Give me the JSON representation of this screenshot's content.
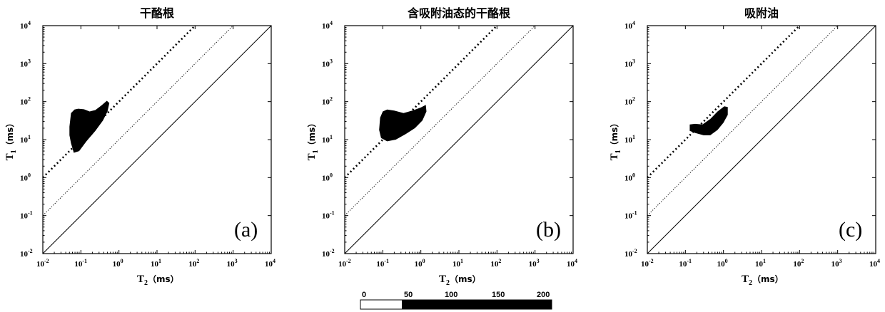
{
  "figure": {
    "tick_base": "10",
    "tick_exponents": [
      "-2",
      "-1",
      "0",
      "1",
      "2",
      "3",
      "4"
    ],
    "xlabel_main": "T",
    "xlabel_sub": "2",
    "ylabel_main": "T",
    "ylabel_sub": "1",
    "unit": "（ms）"
  },
  "colorbar": {
    "ticks": [
      "0",
      "50",
      "100",
      "150",
      "200"
    ],
    "range": [
      0,
      200
    ]
  },
  "chart_data": [
    {
      "type": "scatter",
      "title": "干酪根",
      "panel_label": "(a)",
      "xscale": "log",
      "yscale": "log",
      "xlim": [
        0.01,
        10000
      ],
      "ylim": [
        0.01,
        10000
      ],
      "xlabel": "T2（ms）",
      "ylabel": "T1（ms）",
      "reference_lines": [
        {
          "style": "solid",
          "ratio": 1
        },
        {
          "style": "dotted-fine",
          "ratio": 10
        },
        {
          "style": "dotted-bold",
          "ratio": 100
        }
      ],
      "signal_region_T2_T1": [
        [
          0.05,
          22
        ],
        [
          0.055,
          50
        ],
        [
          0.068,
          62
        ],
        [
          0.085,
          65
        ],
        [
          0.12,
          63
        ],
        [
          0.17,
          55
        ],
        [
          0.24,
          60
        ],
        [
          0.34,
          78
        ],
        [
          0.48,
          105
        ],
        [
          0.56,
          92
        ],
        [
          0.5,
          55
        ],
        [
          0.38,
          32
        ],
        [
          0.24,
          17
        ],
        [
          0.14,
          9
        ],
        [
          0.09,
          5
        ],
        [
          0.065,
          4.5
        ],
        [
          0.055,
          8
        ],
        [
          0.05,
          13
        ]
      ]
    },
    {
      "type": "scatter",
      "title": "含吸附油态的干酪根",
      "panel_label": "(b)",
      "xscale": "log",
      "yscale": "log",
      "xlim": [
        0.01,
        10000
      ],
      "ylim": [
        0.01,
        10000
      ],
      "xlabel": "T2（ms）",
      "ylabel": "T1（ms）",
      "reference_lines": [
        {
          "style": "solid",
          "ratio": 1
        },
        {
          "style": "dotted-fine",
          "ratio": 10
        },
        {
          "style": "dotted-bold",
          "ratio": 100
        }
      ],
      "signal_region_T2_T1": [
        [
          0.08,
          18
        ],
        [
          0.085,
          38
        ],
        [
          0.1,
          55
        ],
        [
          0.13,
          62
        ],
        [
          0.2,
          58
        ],
        [
          0.35,
          50
        ],
        [
          0.6,
          58
        ],
        [
          1.0,
          70
        ],
        [
          1.35,
          82
        ],
        [
          1.4,
          55
        ],
        [
          1.1,
          32
        ],
        [
          0.7,
          20
        ],
        [
          0.4,
          14
        ],
        [
          0.22,
          10
        ],
        [
          0.13,
          9
        ],
        [
          0.09,
          11
        ]
      ]
    },
    {
      "type": "scatter",
      "title": "吸附油",
      "panel_label": "(c)",
      "xscale": "log",
      "yscale": "log",
      "xlim": [
        0.01,
        10000
      ],
      "ylim": [
        0.01,
        10000
      ],
      "xlabel": "T2（ms）",
      "ylabel": "T1（ms）",
      "reference_lines": [
        {
          "style": "solid",
          "ratio": 1
        },
        {
          "style": "dotted-fine",
          "ratio": 10
        },
        {
          "style": "dotted-bold",
          "ratio": 100
        }
      ],
      "signal_region_T2_T1": [
        [
          0.13,
          17
        ],
        [
          0.13,
          25
        ],
        [
          0.18,
          26
        ],
        [
          0.28,
          25
        ],
        [
          0.45,
          35
        ],
        [
          0.7,
          55
        ],
        [
          1.05,
          75
        ],
        [
          1.3,
          72
        ],
        [
          1.3,
          45
        ],
        [
          1.0,
          28
        ],
        [
          0.7,
          18
        ],
        [
          0.45,
          13
        ],
        [
          0.3,
          13
        ],
        [
          0.18,
          15
        ]
      ]
    }
  ]
}
